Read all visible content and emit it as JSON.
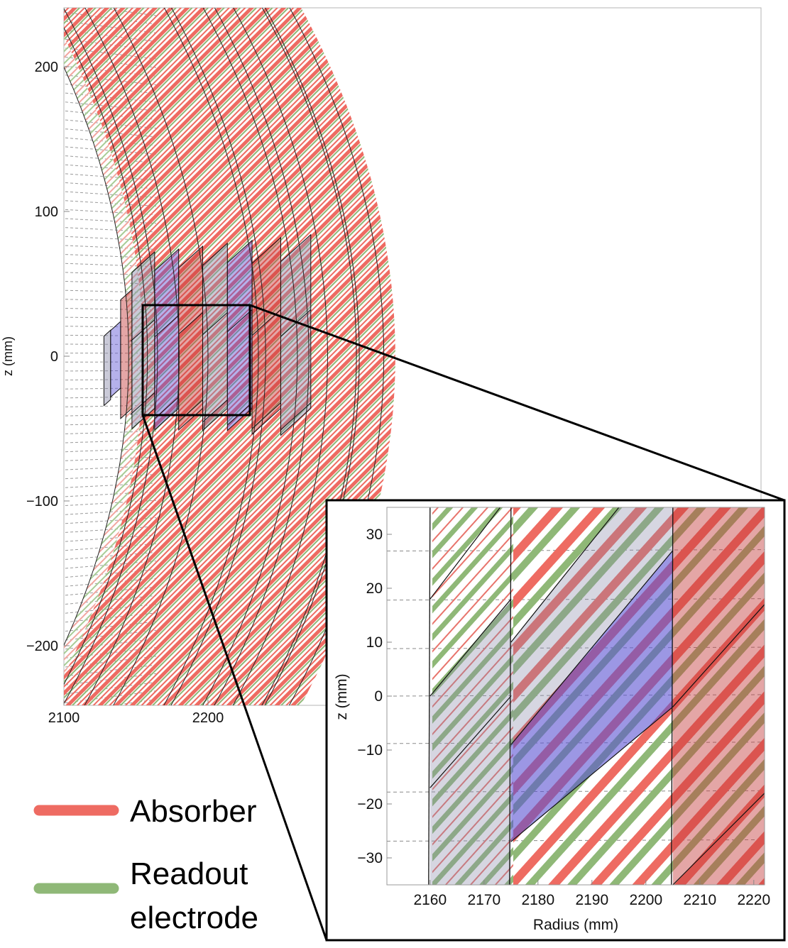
{
  "chart_data": [
    {
      "type": "diagram",
      "xlabel": "",
      "ylabel": "z (mm)",
      "xlim": [
        2100,
        2330
      ],
      "ylim": [
        -240,
        240
      ],
      "xticks": [
        2100,
        2200
      ],
      "yticks": [
        200,
        100,
        0,
        -100,
        -200
      ],
      "zoom_region": {
        "r": [
          2160,
          2220
        ],
        "z": [
          -35,
          35
        ]
      }
    },
    {
      "type": "diagram",
      "xlabel": "Radius (mm)",
      "ylabel": "z (mm)",
      "xlim": [
        2152,
        2222
      ],
      "ylim": [
        -35,
        35
      ],
      "xticks": [
        2160,
        2170,
        2180,
        2190,
        2200,
        2210,
        2220
      ],
      "yticks": [
        30,
        20,
        10,
        0,
        -10,
        -20,
        -30
      ]
    }
  ],
  "legend": {
    "placement": "bottom-left",
    "items": [
      {
        "label_lines": [
          "Absorber"
        ],
        "color": "#ee6b62"
      },
      {
        "label_lines": [
          "Readout",
          "electrode"
        ],
        "color": "#8fb877"
      }
    ]
  },
  "colors": {
    "absorber": "#ee6b62",
    "electrode": "#8fb877",
    "cell_red": "#c43a3a",
    "cell_blue": "#5a52d2",
    "cell_grey": "#8a8aa8"
  }
}
